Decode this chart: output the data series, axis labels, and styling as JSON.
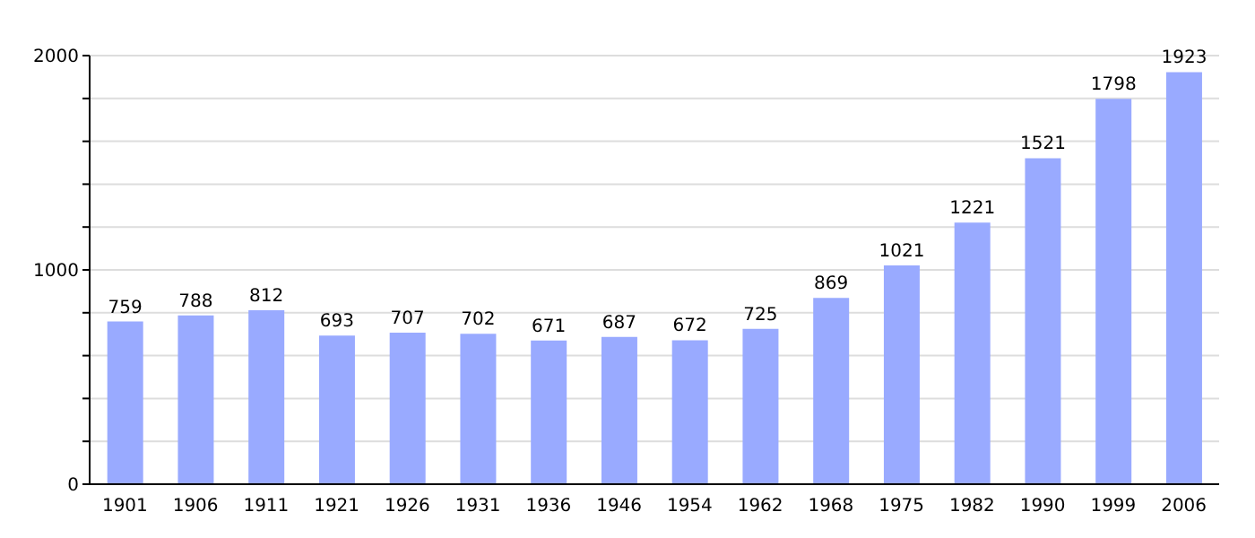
{
  "chart_data": {
    "type": "bar",
    "categories": [
      "1901",
      "1906",
      "1911",
      "1921",
      "1926",
      "1931",
      "1936",
      "1946",
      "1954",
      "1962",
      "1968",
      "1975",
      "1982",
      "1990",
      "1999",
      "2006"
    ],
    "values": [
      759,
      788,
      812,
      693,
      707,
      702,
      671,
      687,
      672,
      725,
      869,
      1021,
      1221,
      1521,
      1798,
      1923
    ],
    "color": "#99aaff",
    "ylim": [
      0,
      2000
    ],
    "yticks": [
      0,
      {
        "value": 200,
        "label": null
      },
      {
        "value": 400,
        "label": null
      },
      {
        "value": 600,
        "label": null
      },
      {
        "value": 800,
        "label": null
      },
      1000,
      {
        "value": 1200,
        "label": null
      },
      {
        "value": 1400,
        "label": null
      },
      {
        "value": 1600,
        "label": null
      },
      {
        "value": 1800,
        "label": null
      },
      2000
    ],
    "grid": "y",
    "data_labels": true
  }
}
